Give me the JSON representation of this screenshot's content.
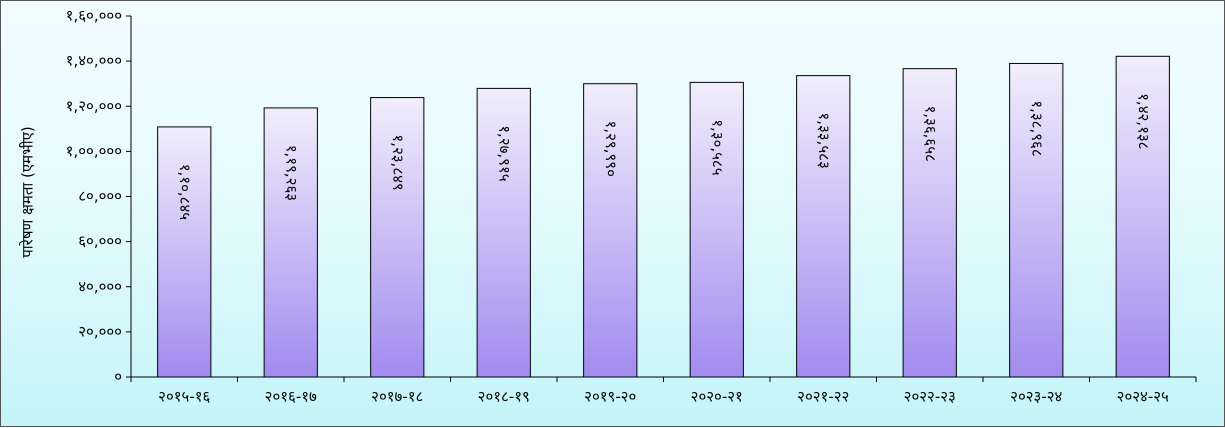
{
  "chart_data": {
    "type": "bar",
    "title": "",
    "xlabel": "",
    "ylabel": "पारेषण क्षमता (एमभीए)",
    "ylim": [
      0,
      160000
    ],
    "yticks": [
      0,
      20000,
      40000,
      60000,
      80000,
      100000,
      120000,
      140000,
      160000
    ],
    "ytick_labels": [
      "०",
      "२०,०००",
      "४०,०००",
      "६०,०००",
      "८०,०००",
      "१,००,०००",
      "१,२०,०००",
      "१,४०,०००",
      "१,६०,०००"
    ],
    "categories": [
      "२०१५-१६",
      "२०१६-१७",
      "२०१७-१८",
      "२०१८-१९",
      "२०१९-२०",
      "२०२०-२१",
      "२०२१-२२",
      "२०२२-२३",
      "२०२३-२४",
      "२०२४-२५"
    ],
    "values": [
      110845,
      119263,
      123849,
      127915,
      129990,
      130585,
      133583,
      136658,
      138968,
      142138
    ],
    "value_labels": [
      "१,१०,८४५",
      "१,१९,२६३",
      "१,२३,८४९",
      "१,२७,९१५",
      "१,२९,९९०",
      "१,३०,५८५",
      "१,३३,५८३",
      "१,३६,६५८",
      "१,३८,९६८",
      "१,४२,१३८"
    ],
    "grid": false,
    "legend": "none",
    "colors": {
      "bar_top": "#f1eefc",
      "bar_bottom": "#a18bef",
      "bar_border": "#000000",
      "bg_top": "#f2fdfe",
      "bg_bottom": "#c4f4f9"
    }
  }
}
